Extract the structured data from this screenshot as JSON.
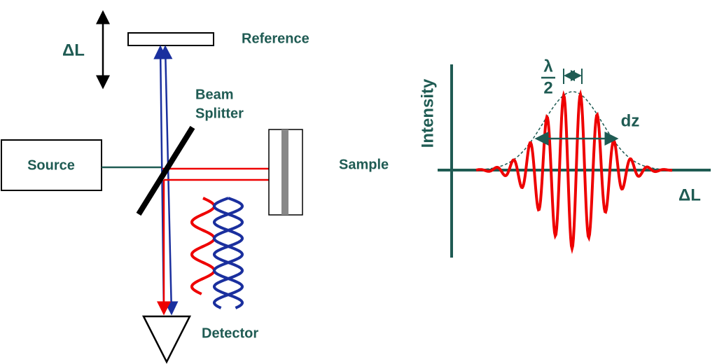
{
  "setup": {
    "delta_label": "ΔL",
    "reference": "Reference",
    "beam_splitter": [
      "Beam",
      "Splitter"
    ],
    "source": "Source",
    "sample": "Sample",
    "detector": "Detector"
  },
  "plot": {
    "y_label": "Intensity",
    "x_label": "ΔL",
    "lambda_top": "λ",
    "lambda_bottom": "2",
    "width_label": "dz"
  }
}
